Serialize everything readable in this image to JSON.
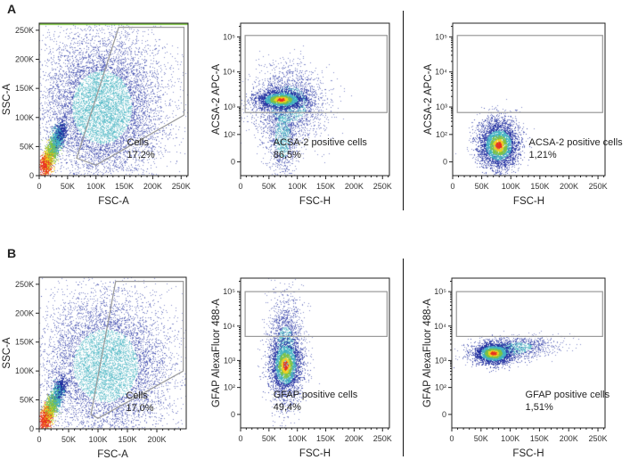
{
  "panels": [
    {
      "label": "A"
    },
    {
      "label": "B"
    }
  ],
  "chart_data": [
    {
      "panel": "A",
      "type": "scatter",
      "subtype": "flow-cytometry-density",
      "xlabel": "FSC-A",
      "ylabel": "SSC-A",
      "xscale": "linear",
      "yscale": "linear",
      "xlim": [
        0,
        262144
      ],
      "ylim": [
        0,
        262144
      ],
      "xticks": [
        {
          "v": 0,
          "label": "0"
        },
        {
          "v": 50000,
          "label": "50K"
        },
        {
          "v": 100000,
          "label": "100K"
        },
        {
          "v": 150000,
          "label": "150K"
        },
        {
          "v": 200000,
          "label": "200K"
        },
        {
          "v": 250000,
          "label": "250K"
        }
      ],
      "yticks": [
        {
          "v": 0,
          "label": "0"
        },
        {
          "v": 50000,
          "label": "50K"
        },
        {
          "v": 100000,
          "label": "100K"
        },
        {
          "v": 150000,
          "label": "150K"
        },
        {
          "v": 200000,
          "label": "200K"
        },
        {
          "v": 250000,
          "label": "250K"
        }
      ],
      "gate": {
        "type": "polygon",
        "name": "Cells",
        "percent": "17,2%",
        "points": [
          [
            140000,
            255000
          ],
          [
            255000,
            255000
          ],
          [
            255000,
            104000
          ],
          [
            100000,
            18000
          ],
          [
            66000,
            30000
          ]
        ]
      }
    },
    {
      "panel": "A",
      "type": "scatter",
      "subtype": "flow-cytometry-density",
      "xlabel": "FSC-H",
      "ylabel": "ACSA-2 APC-A",
      "xscale": "linear",
      "yscale": "biexponential",
      "xlim": [
        0,
        262144
      ],
      "xticks": [
        {
          "v": 0,
          "label": "0"
        },
        {
          "v": 50000,
          "label": "50K"
        },
        {
          "v": 100000,
          "label": "100K"
        },
        {
          "v": 150000,
          "label": "150K"
        },
        {
          "v": 200000,
          "label": "200K"
        },
        {
          "v": 250000,
          "label": "250K"
        }
      ],
      "yticks": [
        {
          "v": 0,
          "label": "0"
        },
        {
          "v": 100,
          "label": "10²"
        },
        {
          "v": 1000,
          "label": "10³"
        },
        {
          "v": 10000,
          "label": "10⁴"
        },
        {
          "v": 100000,
          "label": "10⁵"
        }
      ],
      "gate": {
        "type": "rectangle",
        "name": "ACSA-2 positive cells",
        "percent": "86,5%",
        "x": [
          8000,
          258000
        ],
        "y": [
          630,
          110000
        ]
      }
    },
    {
      "panel": "A",
      "type": "scatter",
      "subtype": "flow-cytometry-density",
      "xlabel": "FSC-H",
      "ylabel": "ACSA-2 APC-A",
      "xscale": "linear",
      "yscale": "biexponential",
      "xlim": [
        0,
        262144
      ],
      "xticks": [
        {
          "v": 0,
          "label": "0"
        },
        {
          "v": 50000,
          "label": "50K"
        },
        {
          "v": 100000,
          "label": "100K"
        },
        {
          "v": 150000,
          "label": "150K"
        },
        {
          "v": 200000,
          "label": "200K"
        },
        {
          "v": 250000,
          "label": "250K"
        }
      ],
      "yticks": [
        {
          "v": 0,
          "label": "0"
        },
        {
          "v": 100,
          "label": "10²"
        },
        {
          "v": 1000,
          "label": "10³"
        },
        {
          "v": 10000,
          "label": "10⁴"
        },
        {
          "v": 100000,
          "label": "10⁵"
        }
      ],
      "gate": {
        "type": "rectangle",
        "name": "ACSA-2 positive cells",
        "percent": "1,21%",
        "x": [
          8000,
          258000
        ],
        "y": [
          630,
          110000
        ]
      }
    },
    {
      "panel": "B",
      "type": "scatter",
      "subtype": "flow-cytometry-density",
      "xlabel": "FSC-A",
      "ylabel": "SSC-A",
      "xscale": "linear",
      "yscale": "linear",
      "xlim": [
        0,
        250000
      ],
      "ylim": [
        0,
        262144
      ],
      "xticks": [
        {
          "v": 0,
          "label": "0"
        },
        {
          "v": 50000,
          "label": "50K"
        },
        {
          "v": 100000,
          "label": "100K"
        },
        {
          "v": 150000,
          "label": "150K"
        },
        {
          "v": 200000,
          "label": "200K"
        }
      ],
      "yticks": [
        {
          "v": 0,
          "label": "0"
        },
        {
          "v": 50000,
          "label": "50K"
        },
        {
          "v": 100000,
          "label": "100K"
        },
        {
          "v": 150000,
          "label": "150K"
        },
        {
          "v": 200000,
          "label": "200K"
        },
        {
          "v": 250000,
          "label": "250K"
        }
      ],
      "gate": {
        "type": "polygon",
        "name": "Cells",
        "percent": "17,0%",
        "points": [
          [
            130000,
            255000
          ],
          [
            245000,
            255000
          ],
          [
            245000,
            100000
          ],
          [
            100000,
            18000
          ],
          [
            88000,
            25000
          ]
        ]
      }
    },
    {
      "panel": "B",
      "type": "scatter",
      "subtype": "flow-cytometry-density",
      "xlabel": "FSC-H",
      "ylabel": "GFAP AlexaFluor 488-A",
      "xscale": "linear",
      "yscale": "biexponential",
      "xlim": [
        0,
        262144
      ],
      "xticks": [
        {
          "v": 0,
          "label": "0"
        },
        {
          "v": 50000,
          "label": "50K"
        },
        {
          "v": 100000,
          "label": "100K"
        },
        {
          "v": 150000,
          "label": "150K"
        },
        {
          "v": 200000,
          "label": "200K"
        },
        {
          "v": 250000,
          "label": "250K"
        }
      ],
      "yticks": [
        {
          "v": 0,
          "label": "0"
        },
        {
          "v": 100,
          "label": "10²"
        },
        {
          "v": 1000,
          "label": "10³"
        },
        {
          "v": 10000,
          "label": "10⁴"
        },
        {
          "v": 100000,
          "label": "10⁵"
        }
      ],
      "gate": {
        "type": "rectangle",
        "name": "GFAP positive cells",
        "percent": "49,4%",
        "x": [
          8000,
          258000
        ],
        "y": [
          5000,
          100000
        ]
      }
    },
    {
      "panel": "B",
      "type": "scatter",
      "subtype": "flow-cytometry-density",
      "xlabel": "FSC-H",
      "ylabel": "GFAP AlexaFluor 488-A",
      "xscale": "linear",
      "yscale": "biexponential",
      "xlim": [
        0,
        262144
      ],
      "xticks": [
        {
          "v": 0,
          "label": "0"
        },
        {
          "v": 50000,
          "label": "50K"
        },
        {
          "v": 100000,
          "label": "100K"
        },
        {
          "v": 150000,
          "label": "150K"
        },
        {
          "v": 200000,
          "label": "200K"
        },
        {
          "v": 250000,
          "label": "250K"
        }
      ],
      "yticks": [
        {
          "v": 0,
          "label": "0"
        },
        {
          "v": 100,
          "label": "10²"
        },
        {
          "v": 1000,
          "label": "10³"
        },
        {
          "v": 10000,
          "label": "10⁴"
        },
        {
          "v": 100000,
          "label": "10⁵"
        }
      ],
      "gate": {
        "type": "rectangle",
        "name": "GFAP positive cells",
        "percent": "1,51%",
        "x": [
          8000,
          258000
        ],
        "y": [
          5000,
          100000
        ]
      }
    }
  ],
  "colors": {
    "low": "#1b2a9e",
    "mid": "#3fb0c0",
    "green": "#7cc242",
    "yellow": "#f2d01e",
    "high": "#e8301e",
    "gate": "#999999"
  }
}
